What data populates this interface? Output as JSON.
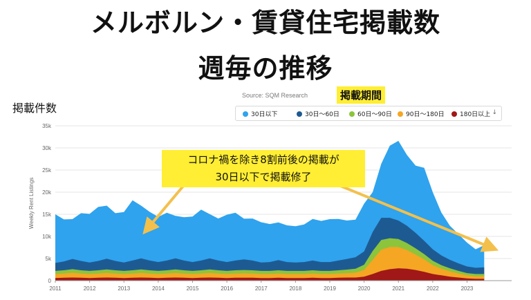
{
  "title_line1": "メルボルン・賃貸住宅掲載数",
  "title_line2": "週毎の推移",
  "ylabel_jp": "掲載件数",
  "source": "Source: SQM Research",
  "legend_title": "掲載期間",
  "annotation_line1": "コロナ禍を除き8割前後の掲載が",
  "annotation_line2": "30日以下で掲載修了",
  "legend_more": "↓",
  "colors": {
    "under30": "#2fa3ee",
    "d30_60": "#1e5a92",
    "d60_90": "#8cc43c",
    "d90_180": "#f5a623",
    "over180": "#a01818",
    "arrow": "#f3c04c"
  },
  "chart_data": {
    "type": "area",
    "title": "",
    "xlabel": "",
    "ylabel": "Weekly Rent Listings",
    "xlim": [
      2011,
      2024.3
    ],
    "ylim": [
      0,
      35000
    ],
    "yticks": [
      "0",
      "5k",
      "10k",
      "15k",
      "20k",
      "25k",
      "30k",
      "35k"
    ],
    "xticks": [
      "2011",
      "2012",
      "2013",
      "2014",
      "2015",
      "2016",
      "2017",
      "2018",
      "2019",
      "2020",
      "2021",
      "2022",
      "2023"
    ],
    "legend_position": "top",
    "stacked": true,
    "x": [
      2011.0,
      2011.25,
      2011.5,
      2011.75,
      2012.0,
      2012.25,
      2012.5,
      2012.75,
      2013.0,
      2013.25,
      2013.5,
      2013.75,
      2014.0,
      2014.25,
      2014.5,
      2014.75,
      2015.0,
      2015.25,
      2015.5,
      2015.75,
      2016.0,
      2016.25,
      2016.5,
      2016.75,
      2017.0,
      2017.25,
      2017.5,
      2017.75,
      2018.0,
      2018.25,
      2018.5,
      2018.75,
      2019.0,
      2019.25,
      2019.5,
      2019.75,
      2020.0,
      2020.25,
      2020.5,
      2020.75,
      2021.0,
      2021.25,
      2021.5,
      2021.75,
      2022.0,
      2022.25,
      2022.5,
      2022.75,
      2023.0,
      2023.25,
      2023.5
    ],
    "series": [
      {
        "name": "180日以上",
        "color": "#a01818",
        "values": [
          600,
          650,
          700,
          650,
          600,
          650,
          700,
          650,
          600,
          650,
          700,
          650,
          600,
          650,
          700,
          650,
          600,
          650,
          700,
          650,
          600,
          650,
          650,
          650,
          600,
          600,
          650,
          600,
          600,
          600,
          650,
          600,
          600,
          650,
          700,
          700,
          900,
          1500,
          2200,
          2600,
          2800,
          2700,
          2400,
          2000,
          1500,
          1200,
          900,
          700,
          500,
          400,
          400
        ]
      },
      {
        "name": "90日〜180日",
        "color": "#f5a623",
        "values": [
          900,
          950,
          1100,
          950,
          900,
          950,
          1050,
          950,
          900,
          950,
          1050,
          950,
          900,
          950,
          1050,
          950,
          900,
          950,
          1050,
          950,
          900,
          950,
          1000,
          950,
          900,
          900,
          950,
          900,
          900,
          900,
          950,
          900,
          900,
          950,
          1000,
          1100,
          1500,
          3200,
          4800,
          5000,
          4800,
          4200,
          3500,
          2800,
          2000,
          1500,
          1200,
          900,
          700,
          600,
          600
        ]
      },
      {
        "name": "60日〜90日",
        "color": "#8cc43c",
        "values": [
          700,
          750,
          800,
          750,
          700,
          750,
          800,
          750,
          700,
          750,
          800,
          750,
          700,
          750,
          800,
          750,
          700,
          750,
          800,
          750,
          700,
          750,
          750,
          750,
          700,
          700,
          750,
          700,
          700,
          700,
          750,
          700,
          700,
          750,
          800,
          900,
          1200,
          2000,
          2200,
          2000,
          1800,
          1600,
          1400,
          1200,
          1000,
          800,
          700,
          600,
          500,
          500,
          500
        ]
      },
      {
        "name": "30日〜60日",
        "color": "#1e5a92",
        "values": [
          1800,
          2000,
          2300,
          2100,
          1900,
          2100,
          2400,
          2100,
          1900,
          2200,
          2500,
          2200,
          2000,
          2200,
          2500,
          2200,
          2000,
          2200,
          2500,
          2200,
          2000,
          2200,
          2400,
          2200,
          1900,
          2000,
          2300,
          2000,
          1900,
          2000,
          2200,
          2000,
          2000,
          2200,
          2400,
          2600,
          3000,
          4300,
          5000,
          4600,
          4200,
          3900,
          3500,
          3000,
          2600,
          2200,
          1900,
          1700,
          1500,
          1400,
          1500
        ]
      },
      {
        "name": "30日以下",
        "color": "#2fa3ee",
        "values": [
          11000,
          9500,
          9000,
          10800,
          11000,
          12200,
          12000,
          10800,
          11400,
          13600,
          11900,
          11000,
          10200,
          10800,
          9600,
          9800,
          10300,
          11500,
          10000,
          9500,
          10700,
          10800,
          9200,
          9500,
          9100,
          8600,
          8500,
          8300,
          8200,
          8500,
          9400,
          9300,
          9700,
          9400,
          8700,
          8500,
          10800,
          9000,
          12200,
          16300,
          18000,
          16000,
          15200,
          16500,
          12900,
          9700,
          7700,
          6600,
          5400,
          4200,
          5000
        ]
      }
    ]
  }
}
